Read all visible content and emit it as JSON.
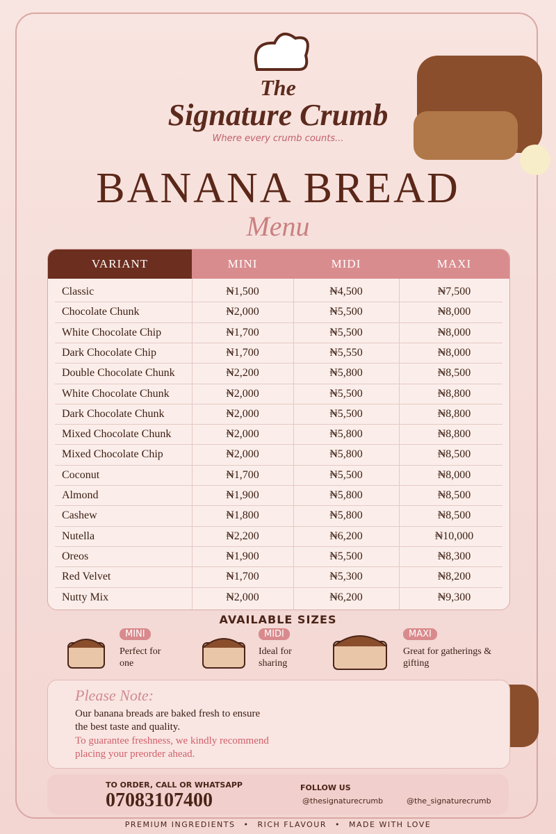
{
  "header": {
    "brand_line1": "The",
    "brand_line2": "Signature Crumb",
    "tagline": "Where every crumb counts...",
    "title": "BANANA BREAD",
    "subtitle": "Menu"
  },
  "table": {
    "columns": [
      "VARIANT",
      "MINI",
      "MIDI",
      "MAXI"
    ],
    "rows": [
      [
        "Classic",
        "₦1,500",
        "₦4,500",
        "₦7,500"
      ],
      [
        "Chocolate Chunk",
        "₦2,000",
        "₦5,500",
        "₦8,000"
      ],
      [
        "White Chocolate Chip",
        "₦1,700",
        "₦5,500",
        "₦8,000"
      ],
      [
        "Dark Chocolate Chip",
        "₦1,700",
        "₦5,550",
        "₦8,000"
      ],
      [
        "Double Chocolate Chunk",
        "₦2,200",
        "₦5,800",
        "₦8,500"
      ],
      [
        "White Chocolate Chunk",
        "₦2,000",
        "₦5,500",
        "₦8,800"
      ],
      [
        "Dark Chocolate Chunk",
        "₦2,000",
        "₦5,500",
        "₦8,800"
      ],
      [
        "Mixed Chocolate Chunk",
        "₦2,000",
        "₦5,800",
        "₦8,800"
      ],
      [
        "Mixed Chocolate Chip",
        "₦2,000",
        "₦5,800",
        "₦8,500"
      ],
      [
        "Coconut",
        "₦1,700",
        "₦5,500",
        "₦8,000"
      ],
      [
        "Almond",
        "₦1,900",
        "₦5,800",
        "₦8,500"
      ],
      [
        "Cashew",
        "₦1,800",
        "₦5,800",
        "₦8,500"
      ],
      [
        "Nutella",
        "₦2,200",
        "₦6,200",
        "₦10,000"
      ],
      [
        "Oreos",
        "₦1,900",
        "₦5,500",
        "₦8,300"
      ],
      [
        "Red Velvet",
        "₦1,700",
        "₦5,300",
        "₦8,200"
      ],
      [
        "Nutty Mix",
        "₦2,000",
        "₦6,200",
        "₦9,300"
      ]
    ]
  },
  "sizes": {
    "heading": "AVAILABLE SIZES",
    "items": [
      {
        "name": "MINI",
        "description": "Perfect for one"
      },
      {
        "name": "MIDI",
        "description": "Ideal for sharing"
      },
      {
        "name": "MAXI",
        "description": "Great for gatherings & gifting"
      }
    ]
  },
  "note": {
    "heading": "Please Note:",
    "body": "Our banana breads are baked fresh to ensure the best taste and quality.",
    "highlight": "To guarantee freshness, we kindly recommend placing your preorder ahead."
  },
  "contact": {
    "label": "TO ORDER, CALL OR WHATSAPP",
    "phone": "07083107400",
    "follow_label": "FOLLOW US",
    "tiktok": "@thesignaturecrumb",
    "instagram": "@the_signaturecrumb"
  },
  "footer": [
    "PREMIUM INGREDIENTS",
    "RICH FLAVOUR",
    "MADE WITH LOVE"
  ]
}
